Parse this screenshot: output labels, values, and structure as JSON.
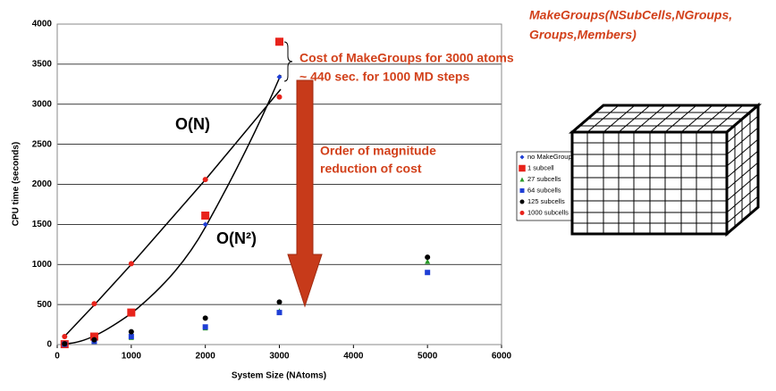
{
  "chart_data": {
    "type": "scatter",
    "xlabel": "System Size (NAtoms)",
    "ylabel": "CPU time (seconds)",
    "xlim": [
      0,
      6000
    ],
    "xticks": [
      0,
      1000,
      2000,
      3000,
      4000,
      5000,
      6000
    ],
    "ylim": [
      0,
      4000
    ],
    "yticks": [
      0,
      500,
      1000,
      1500,
      2000,
      2500,
      3000,
      3500,
      4000
    ],
    "grid": true,
    "series": [
      {
        "name": "no MakeGroups",
        "color": "#1f3fd6",
        "marker": "diamond",
        "x": [
          100,
          500,
          1000,
          2000,
          3000
        ],
        "values": [
          5,
          90,
          380,
          1500,
          3340
        ]
      },
      {
        "name": "1 subcell",
        "color": "#e8231b",
        "marker": "square",
        "x": [
          100,
          500,
          1000,
          2000,
          3000
        ],
        "values": [
          5,
          100,
          400,
          1610,
          3780
        ]
      },
      {
        "name": "27 subcells",
        "color": "#2a9a2a",
        "marker": "triangle",
        "x": [
          100,
          500,
          1000,
          2000,
          3000,
          5000
        ],
        "values": [
          5,
          40,
          90,
          210,
          420,
          1040
        ]
      },
      {
        "name": "64 subcells",
        "color": "#1f3fd6",
        "marker": "smallsquare",
        "x": [
          100,
          500,
          1000,
          2000,
          3000,
          5000
        ],
        "values": [
          5,
          40,
          100,
          220,
          400,
          900
        ]
      },
      {
        "name": "125 subcells",
        "color": "#000000",
        "marker": "circle",
        "x": [
          100,
          500,
          1000,
          2000,
          3000,
          5000
        ],
        "values": [
          10,
          60,
          160,
          330,
          530,
          1090
        ]
      },
      {
        "name": "1000 subcells",
        "color": "#e8231b",
        "marker": "circle",
        "x": [
          100,
          500,
          1000,
          2000,
          3000
        ],
        "values": [
          100,
          510,
          1010,
          2060,
          3090
        ]
      }
    ],
    "annotations": [
      "Cost of MakeGroups for 3000 atoms",
      "~ 440 sec. for 1000 MD steps",
      "Order of magnitude",
      "reduction of cost",
      "O(N)",
      "O(N²)"
    ],
    "function_title": [
      "MakeGroups(NSubCells,NGroups,",
      "Groups,Members)"
    ]
  }
}
